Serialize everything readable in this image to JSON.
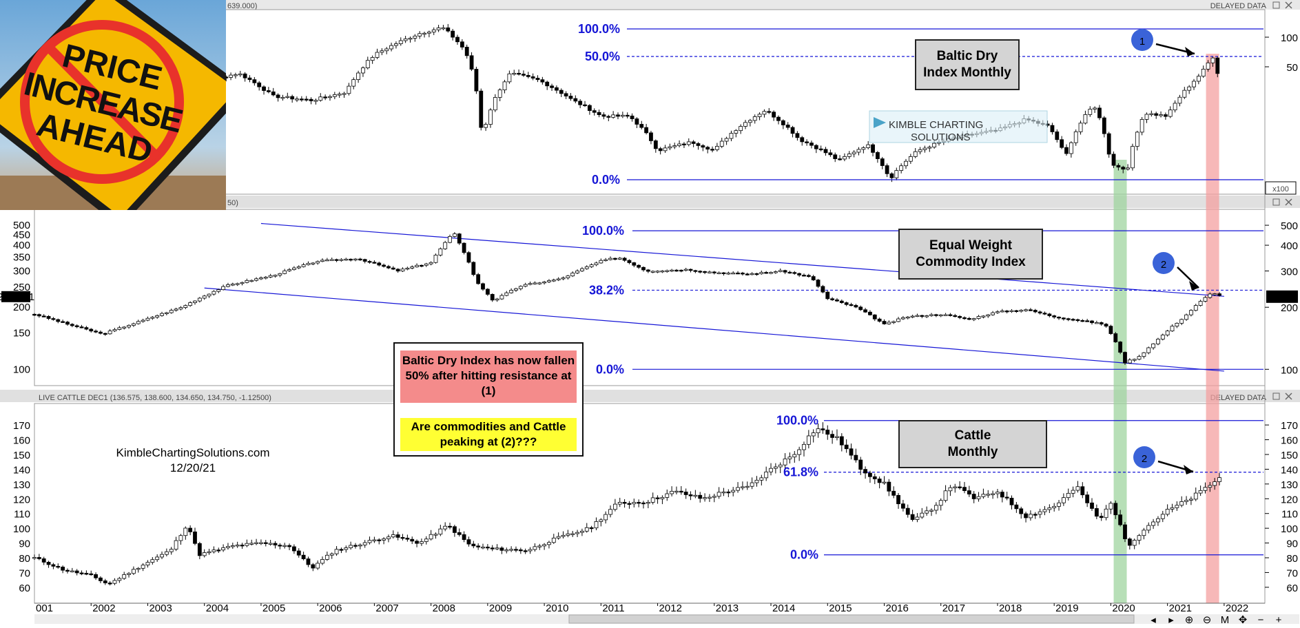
{
  "header": {
    "top_value": "639.000)",
    "top_right": "DELAYED DATA",
    "mid_value": "50)",
    "bottom_title": "LIVE CATTLE DEC1 (136.575, 138.600, 134.650, 134.750, -1.12500)",
    "bottom_right": "DELAYED DATA",
    "multiplier": "x100"
  },
  "sign": {
    "line1": "PRICE",
    "line2": "INCREASE",
    "line3": "AHEAD"
  },
  "watermark": {
    "line1": "KIMBLE CHARTING",
    "line2": "SOLUTIONS"
  },
  "labels": {
    "baltic": "Baltic Dry Index Monthly",
    "commodity": "Equal Weight Commodity Index",
    "cattle": "Cattle Monthly"
  },
  "note": {
    "red_text": "Baltic Dry Index has now fallen 50% after hitting resistance at (1)",
    "yellow_text": "Are commodities and Cattle peaking at (2)???"
  },
  "credit": {
    "site": "KimbleChartingSolutions.com",
    "date": "12/20/21"
  },
  "markers": {
    "m1": "1",
    "m2a": "2",
    "m2b": "2"
  },
  "colors": {
    "fib": "#1515d6",
    "green_band": "#9fd49f",
    "red_band": "#f4a0a0",
    "marker": "#3a63d8"
  },
  "chart_data": [
    {
      "type": "candlestick",
      "name": "Baltic Dry Index Monthly",
      "scale": "log",
      "right_ticks": [
        "100",
        "50"
      ],
      "fib_levels": [
        {
          "label": "100.0%"
        },
        {
          "label": "50.0%"
        },
        {
          "label": "0.0%"
        }
      ],
      "x_ticks": [
        "2002",
        "2003",
        "2004",
        "2005",
        "2006",
        "2007",
        "2008",
        "2009",
        "2010",
        "2011",
        "2012",
        "2013",
        "2014",
        "2015",
        "2016",
        "2017",
        "2018",
        "2019",
        "2020",
        "2021",
        "2022"
      ],
      "anchors": [
        [
          2003.3,
          33
        ],
        [
          2003.9,
          31
        ],
        [
          2004.6,
          38
        ],
        [
          2005.2,
          24
        ],
        [
          2005.9,
          22
        ],
        [
          2006.5,
          26
        ],
        [
          2007.0,
          55
        ],
        [
          2007.8,
          85
        ],
        [
          2008.2,
          96
        ],
        [
          2008.6,
          60
        ],
        [
          2008.9,
          10
        ],
        [
          2009.4,
          38
        ],
        [
          2009.9,
          33
        ],
        [
          2010.5,
          22
        ],
        [
          2011.0,
          16
        ],
        [
          2011.5,
          16
        ],
        [
          2012.0,
          8
        ],
        [
          2012.6,
          9.5
        ],
        [
          2013.0,
          8
        ],
        [
          2013.9,
          18
        ],
        [
          2014.5,
          10
        ],
        [
          2015.2,
          6.5
        ],
        [
          2015.7,
          9
        ],
        [
          2016.1,
          4.5
        ],
        [
          2016.6,
          8
        ],
        [
          2017.0,
          9.5
        ],
        [
          2017.5,
          11
        ],
        [
          2018.0,
          12
        ],
        [
          2018.5,
          15
        ],
        [
          2018.9,
          13
        ],
        [
          2019.2,
          7
        ],
        [
          2019.7,
          20
        ],
        [
          2020.0,
          6
        ],
        [
          2020.3,
          5.5
        ],
        [
          2020.6,
          17
        ],
        [
          2021.0,
          16
        ],
        [
          2021.4,
          30
        ],
        [
          2021.6,
          38
        ],
        [
          2021.8,
          53
        ],
        [
          2021.95,
          27
        ]
      ],
      "resistance_high": 53,
      "latest": 27
    },
    {
      "type": "candlestick",
      "name": "Equal Weight Commodity Index",
      "scale": "log",
      "y_ticks": [
        100,
        150,
        200,
        250,
        300,
        350,
        400,
        450,
        500
      ],
      "right_ticks": [
        100,
        200,
        300,
        400,
        500
      ],
      "last_value": "225.141",
      "last_value_right": "225.14",
      "fib_levels": [
        {
          "label": "100.0%",
          "value": 470
        },
        {
          "label": "38.2%",
          "value": 242
        },
        {
          "label": "0.0%",
          "value": 100
        }
      ],
      "trendline_upper": [
        [
          2005.0,
          510
        ],
        [
          2022.0,
          226
        ]
      ],
      "trendline_lower": [
        [
          2004.0,
          248
        ],
        [
          2022.0,
          98
        ]
      ],
      "anchors": [
        [
          2001.0,
          185
        ],
        [
          2001.6,
          165
        ],
        [
          2002.2,
          148
        ],
        [
          2002.9,
          172
        ],
        [
          2003.6,
          200
        ],
        [
          2004.4,
          255
        ],
        [
          2005.2,
          285
        ],
        [
          2006.0,
          335
        ],
        [
          2006.7,
          345
        ],
        [
          2007.4,
          300
        ],
        [
          2008.0,
          330
        ],
        [
          2008.4,
          460
        ],
        [
          2008.8,
          265
        ],
        [
          2009.1,
          215
        ],
        [
          2009.6,
          255
        ],
        [
          2010.3,
          275
        ],
        [
          2011.0,
          335
        ],
        [
          2011.3,
          350
        ],
        [
          2011.8,
          300
        ],
        [
          2012.5,
          305
        ],
        [
          2013.0,
          295
        ],
        [
          2013.6,
          290
        ],
        [
          2014.2,
          300
        ],
        [
          2014.7,
          280
        ],
        [
          2015.0,
          220
        ],
        [
          2015.5,
          200
        ],
        [
          2016.0,
          165
        ],
        [
          2016.4,
          180
        ],
        [
          2017.0,
          185
        ],
        [
          2017.5,
          175
        ],
        [
          2018.0,
          190
        ],
        [
          2018.5,
          195
        ],
        [
          2019.0,
          180
        ],
        [
          2019.5,
          172
        ],
        [
          2019.9,
          165
        ],
        [
          2020.25,
          108
        ],
        [
          2020.5,
          115
        ],
        [
          2020.9,
          145
        ],
        [
          2021.3,
          180
        ],
        [
          2021.6,
          215
        ],
        [
          2021.8,
          237
        ],
        [
          2021.95,
          225
        ]
      ],
      "latest": 225.141
    },
    {
      "type": "candlestick",
      "name": "Cattle Monthly",
      "scale": "linear",
      "y_ticks": [
        60,
        70,
        80,
        90,
        100,
        110,
        120,
        130,
        140,
        150,
        160,
        170
      ],
      "fib_levels": [
        {
          "label": "100.0%",
          "value": 173
        },
        {
          "label": "61.8%",
          "value": 138
        },
        {
          "label": "0.0%",
          "value": 82
        }
      ],
      "anchors": [
        [
          2001.0,
          80
        ],
        [
          2001.5,
          72
        ],
        [
          2002.0,
          68
        ],
        [
          2002.3,
          62
        ],
        [
          2002.9,
          75
        ],
        [
          2003.4,
          85
        ],
        [
          2003.7,
          103
        ],
        [
          2003.9,
          82
        ],
        [
          2004.5,
          88
        ],
        [
          2005.0,
          90
        ],
        [
          2005.5,
          88
        ],
        [
          2005.9,
          73
        ],
        [
          2006.3,
          85
        ],
        [
          2006.8,
          90
        ],
        [
          2007.3,
          95
        ],
        [
          2007.8,
          90
        ],
        [
          2008.3,
          102
        ],
        [
          2008.7,
          88
        ],
        [
          2009.1,
          86
        ],
        [
          2009.7,
          85
        ],
        [
          2010.2,
          93
        ],
        [
          2010.8,
          100
        ],
        [
          2011.3,
          117
        ],
        [
          2011.8,
          118
        ],
        [
          2012.3,
          125
        ],
        [
          2012.8,
          120
        ],
        [
          2013.2,
          125
        ],
        [
          2013.6,
          128
        ],
        [
          2014.0,
          140
        ],
        [
          2014.4,
          150
        ],
        [
          2014.8,
          168
        ],
        [
          2015.2,
          160
        ],
        [
          2015.6,
          140
        ],
        [
          2016.0,
          130
        ],
        [
          2016.5,
          105
        ],
        [
          2016.9,
          115
        ],
        [
          2017.2,
          130
        ],
        [
          2017.6,
          120
        ],
        [
          2018.0,
          125
        ],
        [
          2018.5,
          108
        ],
        [
          2019.0,
          115
        ],
        [
          2019.4,
          128
        ],
        [
          2019.8,
          105
        ],
        [
          2020.0,
          118
        ],
        [
          2020.3,
          88
        ],
        [
          2020.6,
          100
        ],
        [
          2021.0,
          112
        ],
        [
          2021.4,
          120
        ],
        [
          2021.7,
          128
        ],
        [
          2021.95,
          135
        ]
      ],
      "latest": 134.75
    }
  ]
}
